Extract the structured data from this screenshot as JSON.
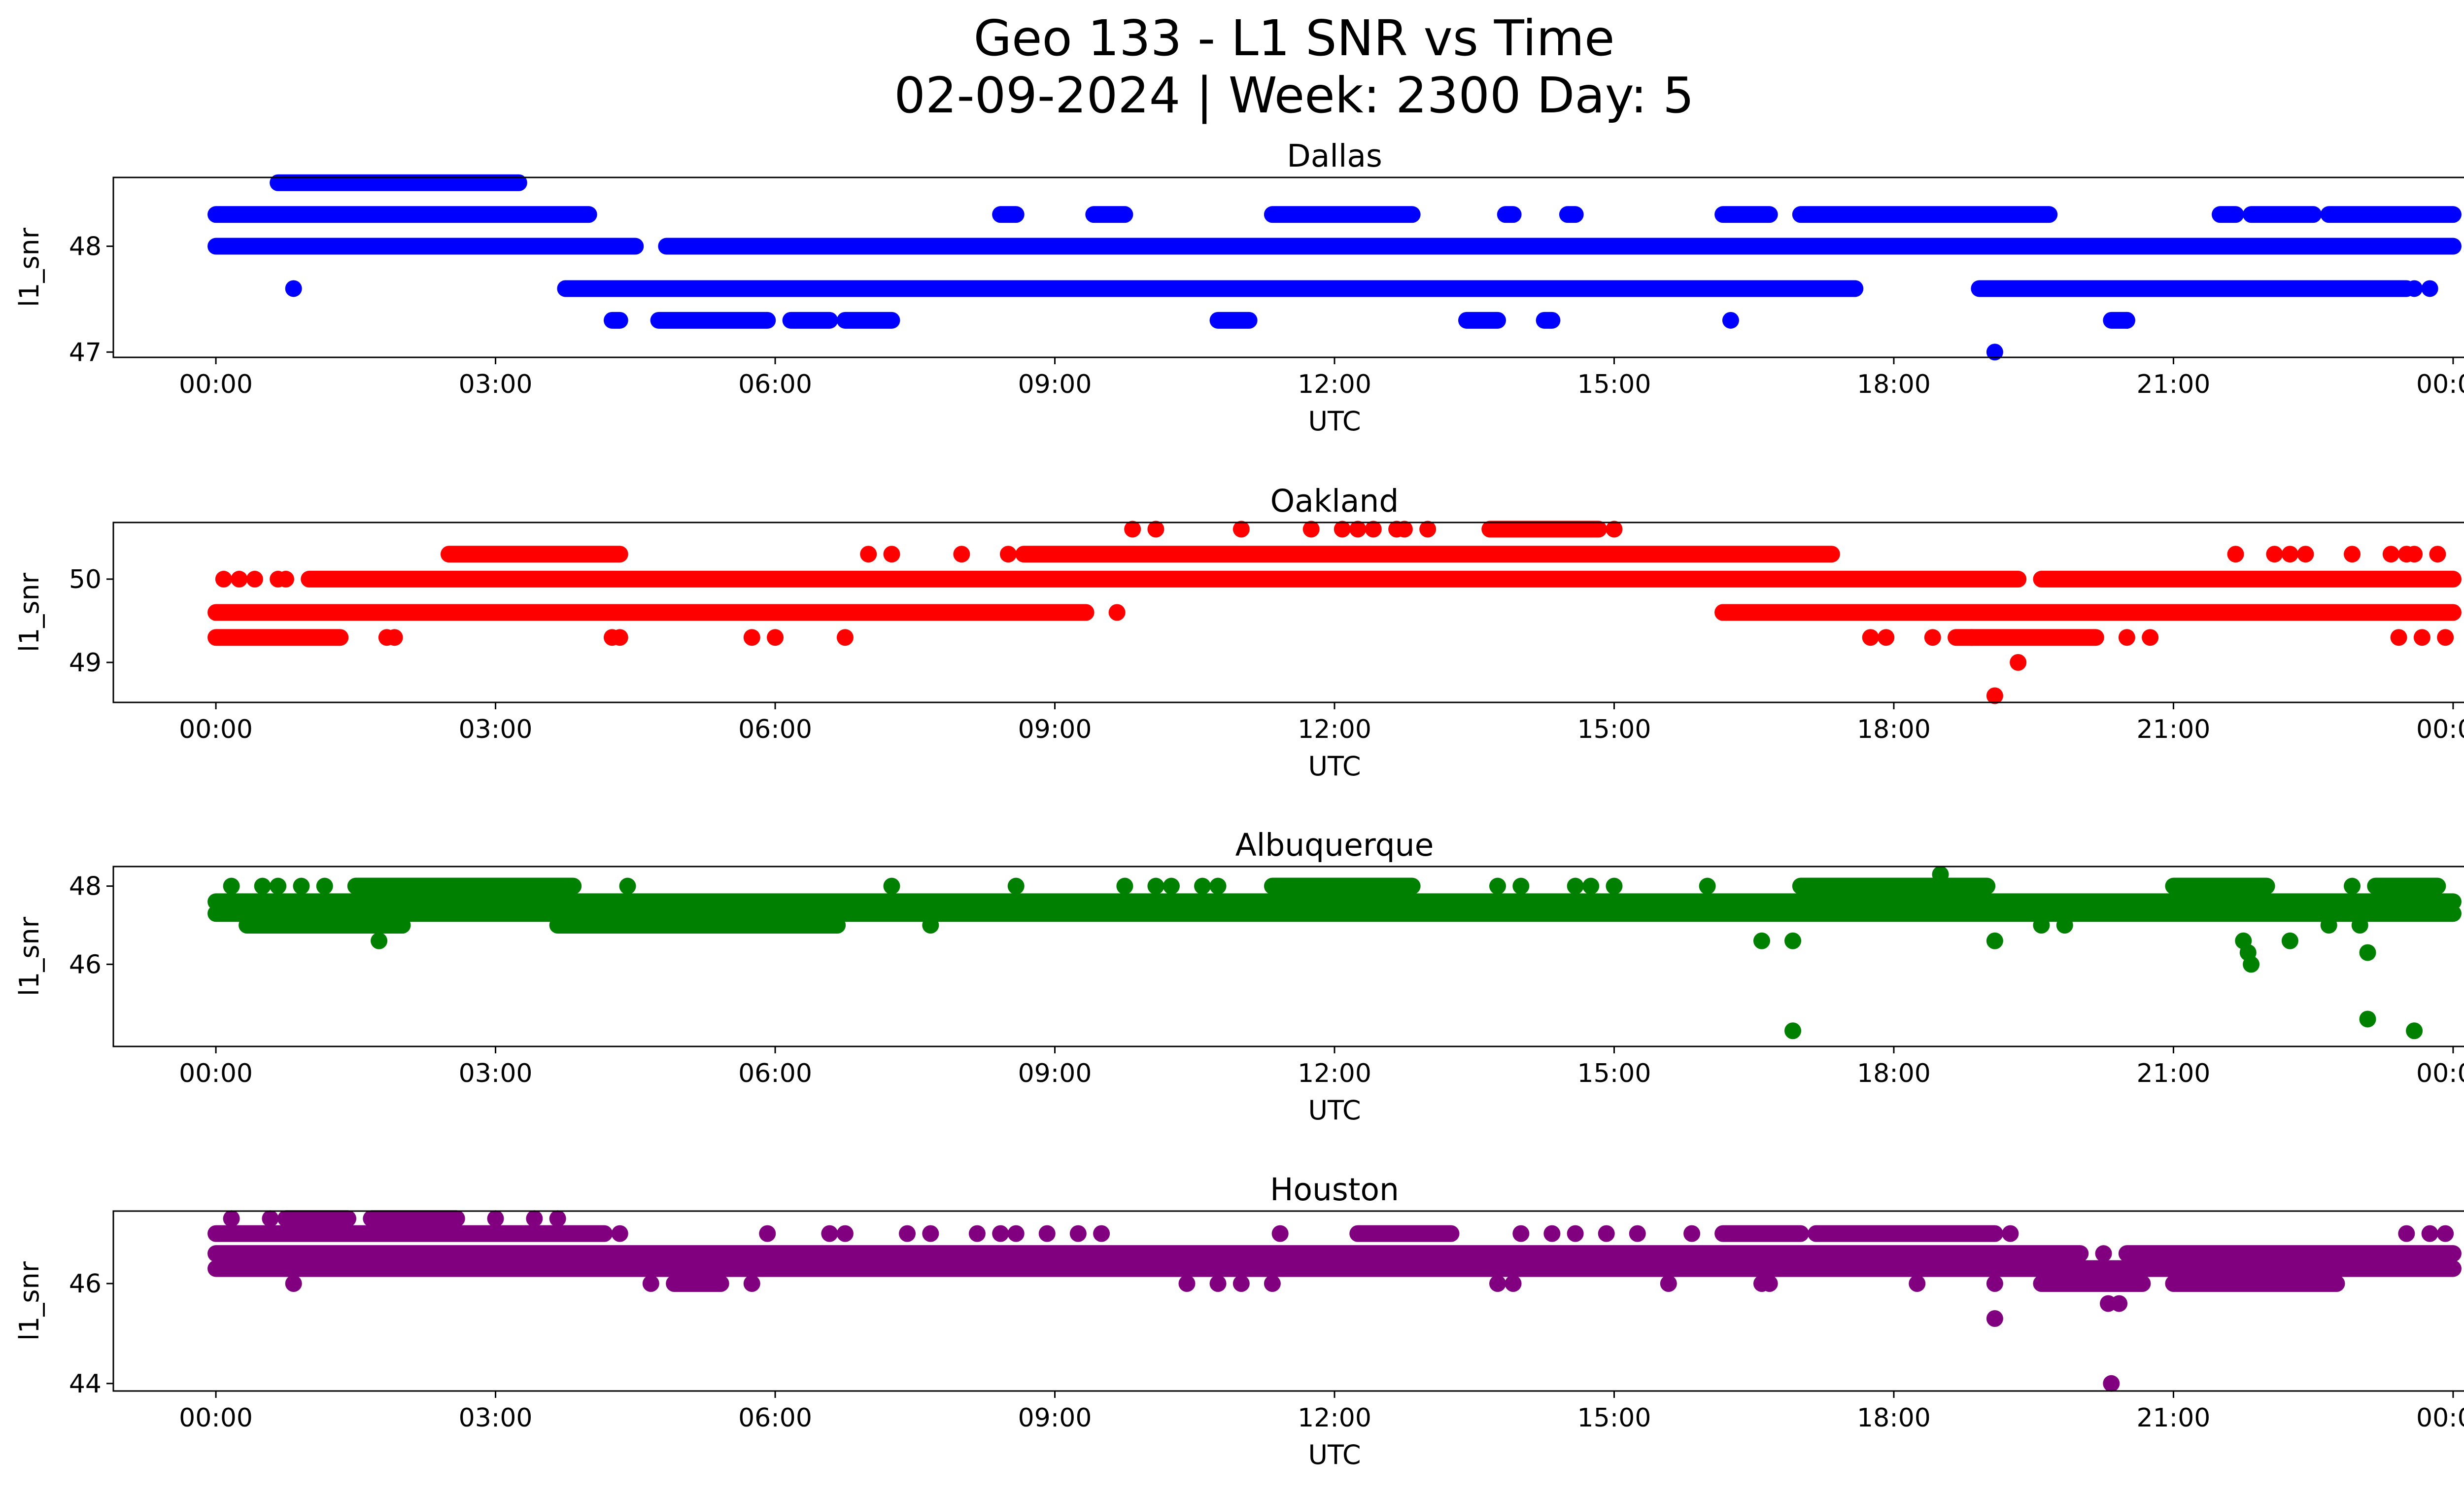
{
  "figure": {
    "title_line1": "Geo 133 - L1 SNR vs Time",
    "title_line2": "02-09-2024 | Week: 2300 Day: 5"
  },
  "chart_data": [
    {
      "type": "scatter",
      "title": "Dallas",
      "xlabel": "UTC",
      "ylabel": "l1_snr",
      "color": "#0000ff",
      "xlim": [
        "-01:06",
        "25:06"
      ],
      "ylim": [
        46.95,
        48.65
      ],
      "xticks": [
        "00:00",
        "03:00",
        "06:00",
        "09:00",
        "12:00",
        "15:00",
        "18:00",
        "21:00",
        "00:00"
      ],
      "yticks": [
        47,
        48
      ],
      "grid": false,
      "bands": [
        {
          "y": 48.3,
          "ranges": [
            [
              "00:00",
              "04:00"
            ],
            [
              "08:25",
              "08:35"
            ],
            [
              "09:25",
              "09:45"
            ],
            [
              "11:20",
              "12:50"
            ],
            [
              "13:50",
              "13:55"
            ],
            [
              "14:30",
              "14:35"
            ],
            [
              "16:10",
              "16:40"
            ],
            [
              "17:00",
              "19:40"
            ],
            [
              "21:30",
              "21:40"
            ],
            [
              "21:50",
              "22:30"
            ],
            [
              "22:40",
              "24:00"
            ]
          ]
        },
        {
          "y": 48.0,
          "ranges": [
            [
              "00:00",
              "04:30"
            ],
            [
              "04:50",
              "24:00"
            ]
          ]
        },
        {
          "y": 47.6,
          "ranges": [
            [
              "03:45",
              "17:35"
            ],
            [
              "18:55",
              "23:30"
            ]
          ]
        },
        {
          "y": 48.6,
          "ranges": [
            [
              "00:40",
              "03:15"
            ]
          ]
        },
        {
          "y": 47.3,
          "ranges": [
            [
              "04:15",
              "04:20"
            ],
            [
              "04:45",
              "05:55"
            ],
            [
              "06:10",
              "06:35"
            ],
            [
              "06:45",
              "07:15"
            ],
            [
              "10:45",
              "11:05"
            ],
            [
              "13:25",
              "13:45"
            ],
            [
              "14:15",
              "14:20"
            ],
            [
              "20:20",
              "20:30"
            ]
          ]
        }
      ],
      "points": [
        {
          "x": "00:50",
          "y": 47.6
        },
        {
          "x": "16:15",
          "y": 47.3
        },
        {
          "x": "17:35",
          "y": 47.6
        },
        {
          "x": "19:05",
          "y": 47.0
        },
        {
          "x": "23:35",
          "y": 47.6
        },
        {
          "x": "23:45",
          "y": 47.6
        },
        {
          "x": "20:30",
          "y": 47.3
        }
      ]
    },
    {
      "type": "scatter",
      "title": "Oakland",
      "xlabel": "UTC",
      "ylabel": "l1_snr",
      "color": "#ff0000",
      "xlim": [
        "-01:06",
        "25:06"
      ],
      "ylim": [
        48.52,
        50.68
      ],
      "xticks": [
        "00:00",
        "03:00",
        "06:00",
        "09:00",
        "12:00",
        "15:00",
        "18:00",
        "21:00",
        "00:00"
      ],
      "yticks": [
        49,
        50
      ],
      "grid": false,
      "bands": [
        {
          "y": 50.0,
          "ranges": [
            [
              "01:00",
              "19:20"
            ],
            [
              "19:35",
              "24:00"
            ]
          ]
        },
        {
          "y": 49.6,
          "ranges": [
            [
              "00:00",
              "09:20"
            ],
            [
              "16:10",
              "24:00"
            ]
          ]
        },
        {
          "y": 50.3,
          "ranges": [
            [
              "02:30",
              "04:20"
            ],
            [
              "08:40",
              "17:20"
            ]
          ]
        },
        {
          "y": 49.3,
          "ranges": [
            [
              "00:00",
              "01:20"
            ],
            [
              "18:40",
              "20:10"
            ]
          ]
        },
        {
          "y": 50.6,
          "ranges": [
            [
              "13:40",
              "14:50"
            ]
          ]
        }
      ],
      "points": [
        {
          "x": "00:05",
          "y": 50.0
        },
        {
          "x": "00:15",
          "y": 50.0
        },
        {
          "x": "00:25",
          "y": 50.0
        },
        {
          "x": "00:40",
          "y": 50.0
        },
        {
          "x": "00:45",
          "y": 50.0
        },
        {
          "x": "01:50",
          "y": 49.3
        },
        {
          "x": "01:55",
          "y": 49.3
        },
        {
          "x": "04:15",
          "y": 49.3
        },
        {
          "x": "04:20",
          "y": 49.3
        },
        {
          "x": "05:45",
          "y": 49.3
        },
        {
          "x": "06:00",
          "y": 49.3
        },
        {
          "x": "06:45",
          "y": 49.3
        },
        {
          "x": "07:00",
          "y": 50.3
        },
        {
          "x": "07:15",
          "y": 50.3
        },
        {
          "x": "08:00",
          "y": 50.3
        },
        {
          "x": "08:30",
          "y": 50.3
        },
        {
          "x": "09:40",
          "y": 49.6
        },
        {
          "x": "09:50",
          "y": 50.6
        },
        {
          "x": "10:05",
          "y": 50.6
        },
        {
          "x": "11:00",
          "y": 50.6
        },
        {
          "x": "11:45",
          "y": 50.6
        },
        {
          "x": "12:05",
          "y": 50.6
        },
        {
          "x": "12:15",
          "y": 50.6
        },
        {
          "x": "12:25",
          "y": 50.6
        },
        {
          "x": "12:40",
          "y": 50.6
        },
        {
          "x": "12:45",
          "y": 50.6
        },
        {
          "x": "13:00",
          "y": 50.6
        },
        {
          "x": "15:00",
          "y": 50.6
        },
        {
          "x": "16:10",
          "y": 49.6
        },
        {
          "x": "17:45",
          "y": 49.3
        },
        {
          "x": "17:55",
          "y": 49.3
        },
        {
          "x": "18:25",
          "y": 49.3
        },
        {
          "x": "18:50",
          "y": 49.3
        },
        {
          "x": "19:05",
          "y": 48.6
        },
        {
          "x": "19:20",
          "y": 49.0
        },
        {
          "x": "20:30",
          "y": 49.3
        },
        {
          "x": "20:45",
          "y": 49.3
        },
        {
          "x": "21:40",
          "y": 50.3
        },
        {
          "x": "22:05",
          "y": 50.3
        },
        {
          "x": "22:15",
          "y": 50.3
        },
        {
          "x": "22:25",
          "y": 50.3
        },
        {
          "x": "22:55",
          "y": 50.3
        },
        {
          "x": "23:20",
          "y": 50.3
        },
        {
          "x": "23:30",
          "y": 50.3
        },
        {
          "x": "23:35",
          "y": 50.3
        },
        {
          "x": "23:50",
          "y": 50.3
        },
        {
          "x": "23:25",
          "y": 49.3
        },
        {
          "x": "23:40",
          "y": 49.3
        },
        {
          "x": "23:55",
          "y": 49.3
        }
      ]
    },
    {
      "type": "scatter",
      "title": "Albuquerque",
      "xlabel": "UTC",
      "ylabel": "l1_snr",
      "color": "#008000",
      "xlim": [
        "-01:06",
        "25:06"
      ],
      "ylim": [
        43.9,
        48.5
      ],
      "xticks": [
        "00:00",
        "03:00",
        "06:00",
        "09:00",
        "12:00",
        "15:00",
        "18:00",
        "21:00",
        "00:00"
      ],
      "yticks": [
        46,
        48
      ],
      "grid": false,
      "bands": [
        {
          "y": 47.6,
          "ranges": [
            [
              "00:00",
              "24:00"
            ]
          ]
        },
        {
          "y": 47.3,
          "ranges": [
            [
              "00:00",
              "24:00"
            ]
          ]
        },
        {
          "y": 48.0,
          "ranges": [
            [
              "01:30",
              "03:50"
            ],
            [
              "11:20",
              "12:50"
            ],
            [
              "17:00",
              "19:00"
            ],
            [
              "21:00",
              "22:00"
            ],
            [
              "23:10",
              "23:50"
            ]
          ]
        },
        {
          "y": 47.0,
          "ranges": [
            [
              "00:20",
              "02:00"
            ],
            [
              "03:40",
              "06:40"
            ]
          ]
        },
        {
          "y": 47.6,
          "ranges": [
            [
              "17:40",
              "19:00"
            ]
          ]
        }
      ],
      "points": [
        {
          "x": "00:10",
          "y": 48.0
        },
        {
          "x": "00:30",
          "y": 48.0
        },
        {
          "x": "00:40",
          "y": 48.0
        },
        {
          "x": "00:55",
          "y": 48.0
        },
        {
          "x": "01:10",
          "y": 48.0
        },
        {
          "x": "01:45",
          "y": 46.6
        },
        {
          "x": "02:00",
          "y": 47.0
        },
        {
          "x": "04:25",
          "y": 48.0
        },
        {
          "x": "07:15",
          "y": 48.0
        },
        {
          "x": "07:40",
          "y": 47.0
        },
        {
          "x": "08:35",
          "y": 48.0
        },
        {
          "x": "09:45",
          "y": 48.0
        },
        {
          "x": "10:05",
          "y": 48.0
        },
        {
          "x": "10:15",
          "y": 48.0
        },
        {
          "x": "10:35",
          "y": 48.0
        },
        {
          "x": "10:45",
          "y": 48.0
        },
        {
          "x": "13:45",
          "y": 48.0
        },
        {
          "x": "14:00",
          "y": 48.0
        },
        {
          "x": "14:35",
          "y": 48.0
        },
        {
          "x": "14:45",
          "y": 48.0
        },
        {
          "x": "15:00",
          "y": 48.0
        },
        {
          "x": "16:00",
          "y": 48.0
        },
        {
          "x": "16:35",
          "y": 46.6
        },
        {
          "x": "16:55",
          "y": 46.6
        },
        {
          "x": "16:55",
          "y": 44.3
        },
        {
          "x": "18:30",
          "y": 48.3
        },
        {
          "x": "19:05",
          "y": 46.6
        },
        {
          "x": "19:35",
          "y": 47.0
        },
        {
          "x": "19:50",
          "y": 47.0
        },
        {
          "x": "21:45",
          "y": 46.6
        },
        {
          "x": "21:48",
          "y": 46.3
        },
        {
          "x": "21:50",
          "y": 46.0
        },
        {
          "x": "22:15",
          "y": 46.6
        },
        {
          "x": "22:40",
          "y": 47.0
        },
        {
          "x": "22:55",
          "y": 48.0
        },
        {
          "x": "23:05",
          "y": 46.3
        },
        {
          "x": "23:05",
          "y": 44.6
        },
        {
          "x": "23:35",
          "y": 44.3
        },
        {
          "x": "23:00",
          "y": 47.0
        }
      ]
    },
    {
      "type": "scatter",
      "title": "Houston",
      "xlabel": "UTC",
      "ylabel": "l1_snr",
      "color": "#800080",
      "xlim": [
        "-01:06",
        "25:06"
      ],
      "ylim": [
        43.85,
        47.45
      ],
      "xticks": [
        "00:00",
        "03:00",
        "06:00",
        "09:00",
        "12:00",
        "15:00",
        "18:00",
        "21:00",
        "00:00"
      ],
      "yticks": [
        44,
        46
      ],
      "grid": false,
      "bands": [
        {
          "y": 46.6,
          "ranges": [
            [
              "00:00",
              "20:00"
            ],
            [
              "20:30",
              "24:00"
            ]
          ]
        },
        {
          "y": 46.3,
          "ranges": [
            [
              "00:00",
              "24:00"
            ]
          ]
        },
        {
          "y": 47.0,
          "ranges": [
            [
              "00:00",
              "04:10"
            ],
            [
              "12:15",
              "13:15"
            ],
            [
              "16:10",
              "17:00"
            ],
            [
              "17:10",
              "19:05"
            ]
          ]
        },
        {
          "y": 46.0,
          "ranges": [
            [
              "04:55",
              "05:25"
            ],
            [
              "19:35",
              "20:40"
            ],
            [
              "21:00",
              "22:45"
            ]
          ]
        },
        {
          "y": 47.3,
          "ranges": [
            [
              "00:45",
              "01:25"
            ],
            [
              "01:40",
              "02:35"
            ]
          ]
        }
      ],
      "points": [
        {
          "x": "00:10",
          "y": 47.3
        },
        {
          "x": "00:35",
          "y": 47.3
        },
        {
          "x": "00:50",
          "y": 46.0
        },
        {
          "x": "03:00",
          "y": 47.3
        },
        {
          "x": "03:25",
          "y": 47.3
        },
        {
          "x": "03:40",
          "y": 47.3
        },
        {
          "x": "04:20",
          "y": 47.0
        },
        {
          "x": "04:40",
          "y": 46.0
        },
        {
          "x": "05:45",
          "y": 46.0
        },
        {
          "x": "05:55",
          "y": 47.0
        },
        {
          "x": "06:35",
          "y": 47.0
        },
        {
          "x": "06:45",
          "y": 47.0
        },
        {
          "x": "07:25",
          "y": 47.0
        },
        {
          "x": "07:40",
          "y": 47.0
        },
        {
          "x": "08:10",
          "y": 47.0
        },
        {
          "x": "08:25",
          "y": 47.0
        },
        {
          "x": "08:35",
          "y": 47.0
        },
        {
          "x": "08:55",
          "y": 47.0
        },
        {
          "x": "09:15",
          "y": 47.0
        },
        {
          "x": "09:30",
          "y": 47.0
        },
        {
          "x": "10:25",
          "y": 46.0
        },
        {
          "x": "10:45",
          "y": 46.0
        },
        {
          "x": "11:00",
          "y": 46.0
        },
        {
          "x": "11:20",
          "y": 46.0
        },
        {
          "x": "11:25",
          "y": 47.0
        },
        {
          "x": "13:45",
          "y": 46.0
        },
        {
          "x": "13:55",
          "y": 46.0
        },
        {
          "x": "14:00",
          "y": 47.0
        },
        {
          "x": "14:20",
          "y": 47.0
        },
        {
          "x": "14:35",
          "y": 47.0
        },
        {
          "x": "14:55",
          "y": 47.0
        },
        {
          "x": "15:15",
          "y": 47.0
        },
        {
          "x": "15:35",
          "y": 46.0
        },
        {
          "x": "15:50",
          "y": 47.0
        },
        {
          "x": "16:35",
          "y": 46.0
        },
        {
          "x": "16:40",
          "y": 46.0
        },
        {
          "x": "18:15",
          "y": 46.0
        },
        {
          "x": "19:05",
          "y": 45.3
        },
        {
          "x": "19:05",
          "y": 46.0
        },
        {
          "x": "19:15",
          "y": 47.0
        },
        {
          "x": "20:15",
          "y": 46.6
        },
        {
          "x": "20:18",
          "y": 45.6
        },
        {
          "x": "20:25",
          "y": 45.6
        },
        {
          "x": "20:20",
          "y": 44.0
        },
        {
          "x": "23:30",
          "y": 47.0
        },
        {
          "x": "23:45",
          "y": 47.0
        },
        {
          "x": "23:55",
          "y": 47.0
        }
      ]
    }
  ]
}
